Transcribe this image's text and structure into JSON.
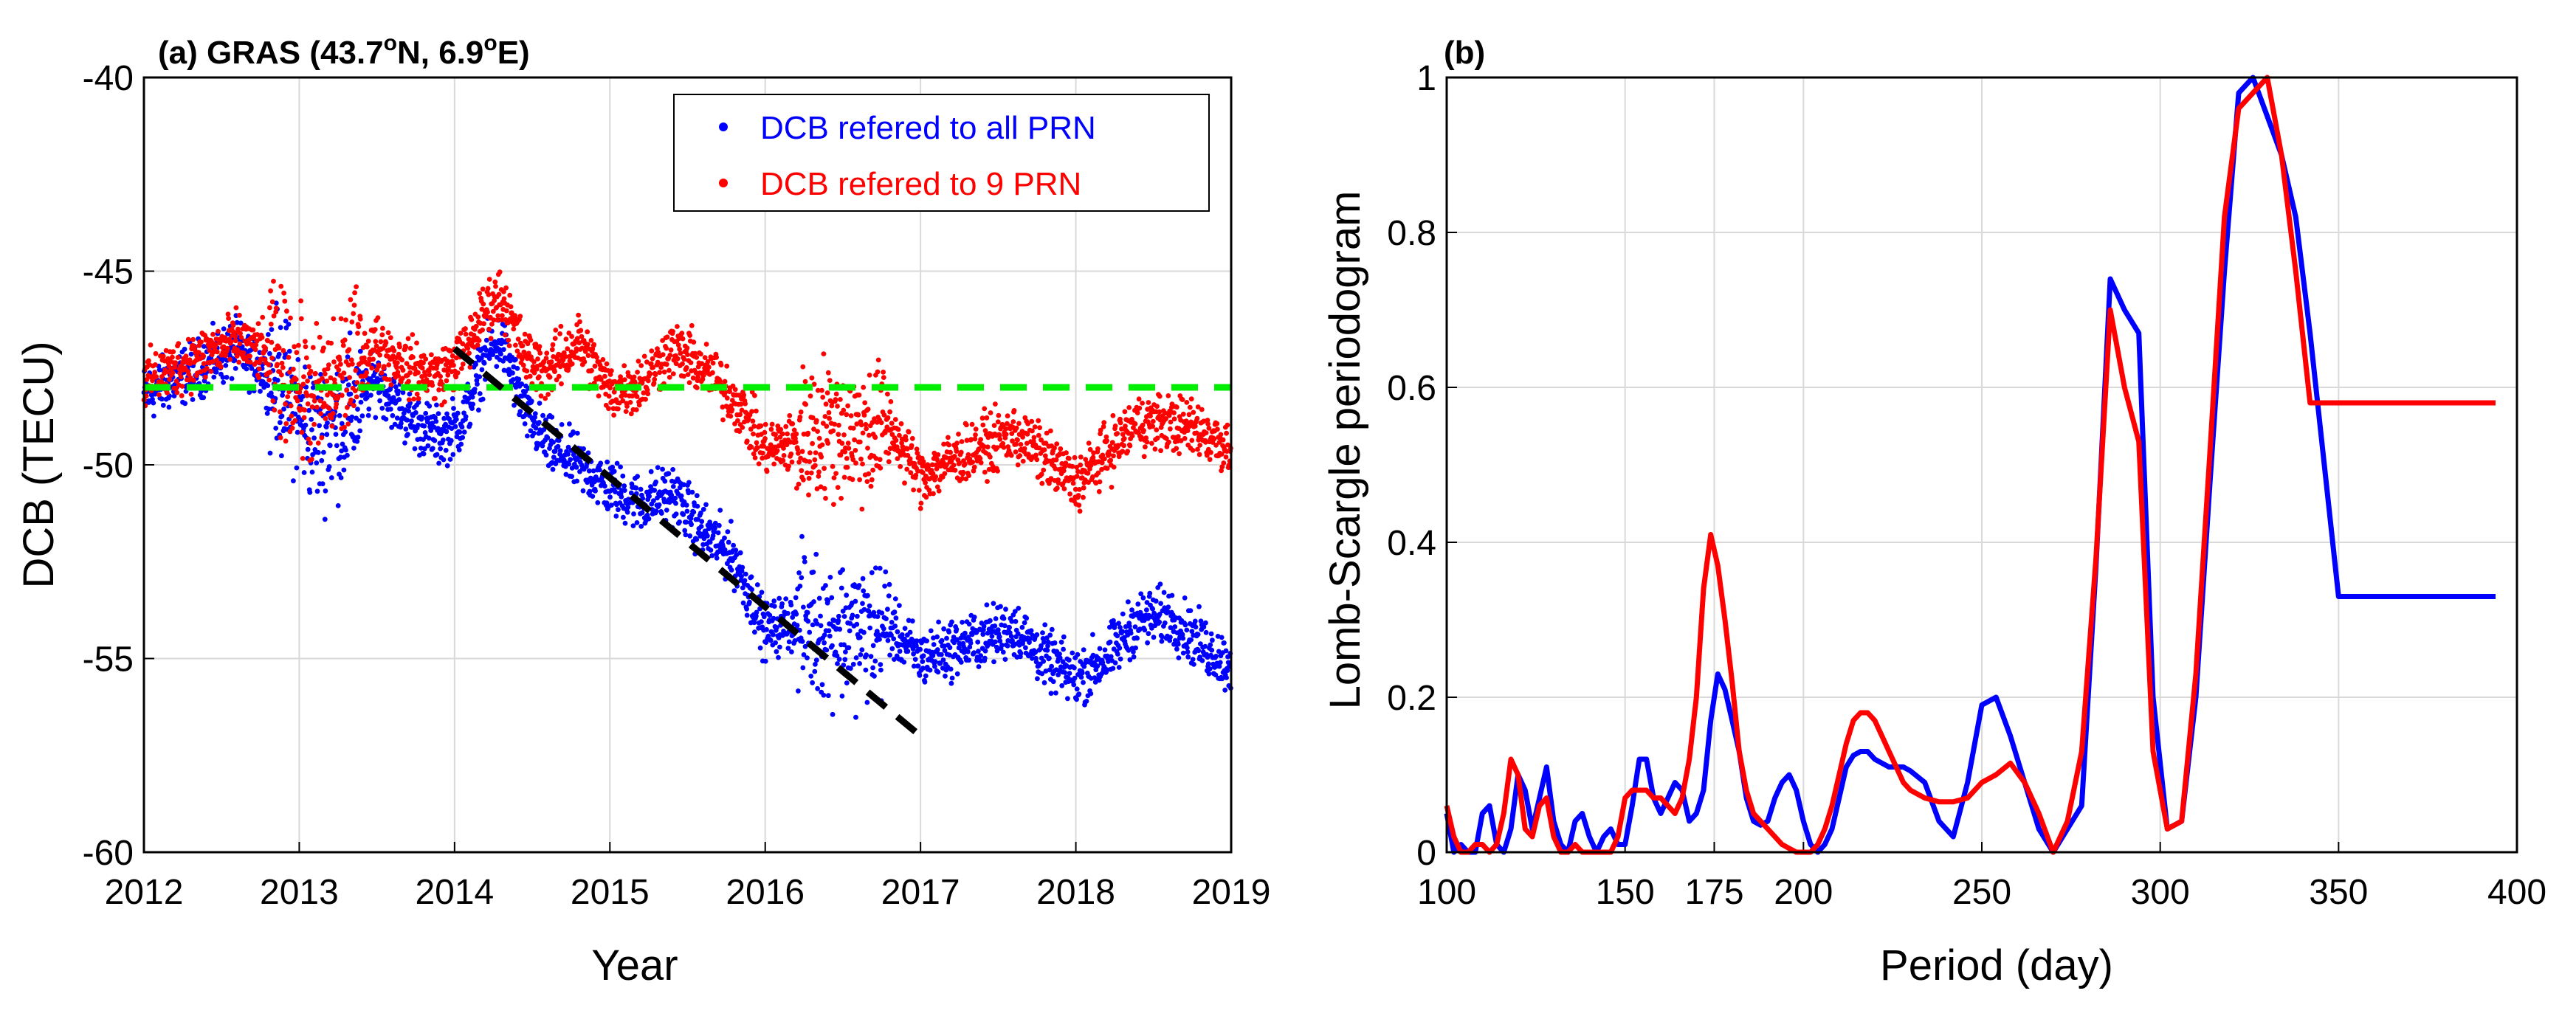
{
  "chart_data": [
    {
      "type": "scatter",
      "title": "(a) GRAS (43.7",
      "title_sup1": "o",
      "title_mid": "N, 6.9",
      "title_sup2": "o",
      "title_end": "E)",
      "xlabel": "Year",
      "ylabel": "DCB (TECU)",
      "xlim": [
        2012,
        2019
      ],
      "ylim": [
        -60,
        -40
      ],
      "xticks": [
        "2012",
        "2013",
        "2014",
        "2015",
        "2016",
        "2017",
        "2018",
        "2019"
      ],
      "yticks": [
        "-40",
        "-45",
        "-50",
        "-55",
        "-60"
      ],
      "grid": true,
      "legend_position": "top-right",
      "series": [
        {
          "name": "DCB refered to all PRN",
          "color": "#0000ff",
          "marker": "dot",
          "trend_points": [
            [
              2012.0,
              -48.2
            ],
            [
              2012.3,
              -47.6
            ],
            [
              2012.6,
              -47.0
            ],
            [
              2012.9,
              -48.0
            ],
            [
              2013.1,
              -49.3
            ],
            [
              2013.3,
              -48.8
            ],
            [
              2013.5,
              -47.8
            ],
            [
              2013.7,
              -48.8
            ],
            [
              2013.9,
              -49.3
            ],
            [
              2014.05,
              -48.9
            ],
            [
              2014.2,
              -47.2
            ],
            [
              2014.3,
              -46.8
            ],
            [
              2014.45,
              -48.6
            ],
            [
              2014.6,
              -49.5
            ],
            [
              2014.8,
              -50.0
            ],
            [
              2015.0,
              -50.6
            ],
            [
              2015.2,
              -51.0
            ],
            [
              2015.4,
              -50.7
            ],
            [
              2015.6,
              -51.7
            ],
            [
              2015.8,
              -52.4
            ],
            [
              2016.0,
              -54.3
            ],
            [
              2016.2,
              -54.0
            ],
            [
              2016.4,
              -54.2
            ],
            [
              2016.6,
              -54.3
            ],
            [
              2016.8,
              -54.2
            ],
            [
              2017.0,
              -55.0
            ],
            [
              2017.3,
              -54.6
            ],
            [
              2017.6,
              -54.2
            ],
            [
              2017.8,
              -55.0
            ],
            [
              2018.0,
              -55.5
            ],
            [
              2018.2,
              -55.0
            ],
            [
              2018.4,
              -54.0
            ],
            [
              2018.6,
              -53.9
            ],
            [
              2018.8,
              -54.6
            ],
            [
              2019.0,
              -55.2
            ]
          ]
        },
        {
          "name": "DCB refered to 9 PRN",
          "color": "#ff0000",
          "marker": "dot",
          "trend_points": [
            [
              2012.0,
              -47.9
            ],
            [
              2012.3,
              -47.3
            ],
            [
              2012.6,
              -46.8
            ],
            [
              2012.9,
              -47.4
            ],
            [
              2013.1,
              -48.4
            ],
            [
              2013.3,
              -47.6
            ],
            [
              2013.5,
              -46.9
            ],
            [
              2013.7,
              -47.5
            ],
            [
              2013.9,
              -47.7
            ],
            [
              2014.05,
              -47.2
            ],
            [
              2014.2,
              -46.0
            ],
            [
              2014.3,
              -45.6
            ],
            [
              2014.45,
              -47.2
            ],
            [
              2014.6,
              -47.6
            ],
            [
              2014.8,
              -46.8
            ],
            [
              2015.0,
              -48.1
            ],
            [
              2015.2,
              -47.9
            ],
            [
              2015.4,
              -47.0
            ],
            [
              2015.6,
              -47.5
            ],
            [
              2015.8,
              -48.3
            ],
            [
              2016.0,
              -49.6
            ],
            [
              2016.2,
              -49.4
            ],
            [
              2016.4,
              -49.0
            ],
            [
              2016.6,
              -49.2
            ],
            [
              2016.8,
              -49.0
            ],
            [
              2017.0,
              -50.3
            ],
            [
              2017.3,
              -49.7
            ],
            [
              2017.6,
              -49.2
            ],
            [
              2017.8,
              -49.8
            ],
            [
              2018.0,
              -50.5
            ],
            [
              2018.2,
              -49.7
            ],
            [
              2018.4,
              -48.9
            ],
            [
              2018.6,
              -48.9
            ],
            [
              2018.8,
              -49.1
            ],
            [
              2019.0,
              -49.6
            ]
          ]
        }
      ],
      "reference_lines": [
        {
          "name": "constant-level",
          "color": "#00ee00",
          "style": "dashed",
          "x": [
            2012,
            2019
          ],
          "y": [
            -48,
            -48
          ]
        },
        {
          "name": "linear-trend",
          "color": "#000000",
          "style": "dashed",
          "x": [
            2014.0,
            2017.0
          ],
          "y": [
            -47.0,
            -57.0
          ]
        }
      ]
    },
    {
      "type": "line",
      "title": "(b)",
      "xlabel": "Period (day)",
      "ylabel": "Lomb-Scargle periodogram",
      "xlim": [
        100,
        400
      ],
      "ylim": [
        0,
        1
      ],
      "xticks": [
        "100",
        "150",
        "175",
        "200",
        "250",
        "300",
        "350",
        "400"
      ],
      "xtick_values": [
        100,
        150,
        175,
        200,
        250,
        300,
        350,
        400
      ],
      "yticks": [
        "0",
        "0.2",
        "0.4",
        "0.6",
        "0.8",
        "1"
      ],
      "ytick_values": [
        0,
        0.2,
        0.4,
        0.6,
        0.8,
        1
      ],
      "grid": true,
      "series": [
        {
          "name": "DCB refered to all PRN",
          "color": "#0000ff",
          "x": [
            100,
            102,
            104,
            106,
            108,
            110,
            112,
            114,
            116,
            118,
            120,
            122,
            124,
            126,
            128,
            130,
            132,
            134,
            136,
            138,
            140,
            142,
            144,
            146,
            148,
            150,
            152,
            154,
            156,
            158,
            160,
            162,
            164,
            166,
            168,
            170,
            172,
            174,
            176,
            178,
            180,
            182,
            184,
            186,
            188,
            190,
            192,
            194,
            196,
            198,
            200,
            202,
            204,
            206,
            208,
            210,
            212,
            214,
            216,
            218,
            220,
            222,
            224,
            226,
            228,
            230,
            234,
            238,
            242,
            246,
            250,
            254,
            258,
            262,
            266,
            270,
            274,
            278,
            282,
            286,
            290,
            294,
            298,
            302,
            306,
            310,
            314,
            318,
            322,
            326,
            330,
            334,
            338,
            342,
            346,
            350,
            354,
            358,
            362,
            366,
            370,
            374,
            378,
            382,
            386,
            390,
            394
          ],
          "y": [
            0.05,
            0.0,
            0.01,
            0.0,
            0.0,
            0.05,
            0.06,
            0.01,
            0.0,
            0.03,
            0.1,
            0.08,
            0.03,
            0.07,
            0.11,
            0.04,
            0.01,
            0.0,
            0.04,
            0.05,
            0.02,
            0.0,
            0.02,
            0.03,
            0.01,
            0.01,
            0.06,
            0.12,
            0.12,
            0.07,
            0.05,
            0.07,
            0.09,
            0.08,
            0.04,
            0.05,
            0.08,
            0.17,
            0.23,
            0.21,
            0.17,
            0.13,
            0.07,
            0.04,
            0.035,
            0.04,
            0.07,
            0.09,
            0.1,
            0.08,
            0.04,
            0.01,
            0.0,
            0.01,
            0.03,
            0.07,
            0.11,
            0.125,
            0.13,
            0.13,
            0.12,
            0.115,
            0.11,
            0.11,
            0.11,
            0.105,
            0.09,
            0.04,
            0.02,
            0.09,
            0.19,
            0.2,
            0.15,
            0.09,
            0.03,
            0.0,
            0.03,
            0.06,
            0.37,
            0.74,
            0.7,
            0.67,
            0.2,
            0.03,
            0.04,
            0.2,
            0.48,
            0.75,
            0.98,
            1.0,
            0.95,
            0.9,
            0.82,
            0.67,
            0.5,
            0.33,
            0.33,
            0.33,
            0.33,
            0.33,
            0.33,
            0.33,
            0.33,
            0.33,
            0.33,
            0.33,
            0.33
          ]
        },
        {
          "name": "DCB refered to 9 PRN",
          "color": "#ff0000",
          "x": [
            100,
            102,
            104,
            106,
            108,
            110,
            112,
            114,
            116,
            118,
            120,
            122,
            124,
            126,
            128,
            130,
            132,
            134,
            136,
            138,
            140,
            142,
            144,
            146,
            148,
            150,
            152,
            154,
            156,
            158,
            160,
            162,
            164,
            166,
            168,
            170,
            172,
            174,
            176,
            178,
            180,
            182,
            184,
            186,
            188,
            190,
            192,
            194,
            196,
            198,
            200,
            202,
            204,
            206,
            208,
            210,
            212,
            214,
            216,
            218,
            220,
            222,
            224,
            226,
            228,
            230,
            234,
            238,
            242,
            246,
            250,
            254,
            258,
            262,
            266,
            270,
            274,
            278,
            282,
            286,
            290,
            294,
            298,
            302,
            306,
            310,
            314,
            318,
            322,
            326,
            330,
            334,
            338,
            342,
            346,
            350,
            354,
            358,
            362,
            366,
            370,
            374,
            378,
            382,
            386,
            390,
            394
          ],
          "y": [
            0.06,
            0.02,
            0.0,
            0.0,
            0.01,
            0.01,
            0.0,
            0.01,
            0.05,
            0.12,
            0.1,
            0.03,
            0.02,
            0.06,
            0.07,
            0.02,
            0.0,
            0.0,
            0.01,
            0.0,
            0.0,
            0.0,
            0.0,
            0.0,
            0.02,
            0.07,
            0.08,
            0.08,
            0.08,
            0.07,
            0.07,
            0.06,
            0.05,
            0.07,
            0.12,
            0.2,
            0.34,
            0.41,
            0.37,
            0.3,
            0.22,
            0.13,
            0.08,
            0.05,
            0.04,
            0.03,
            0.02,
            0.01,
            0.005,
            0.0,
            0.0,
            0.0,
            0.01,
            0.03,
            0.06,
            0.1,
            0.14,
            0.17,
            0.18,
            0.18,
            0.17,
            0.15,
            0.13,
            0.11,
            0.09,
            0.08,
            0.07,
            0.065,
            0.065,
            0.07,
            0.09,
            0.1,
            0.115,
            0.09,
            0.05,
            0.0,
            0.04,
            0.13,
            0.38,
            0.7,
            0.6,
            0.53,
            0.13,
            0.03,
            0.04,
            0.23,
            0.52,
            0.82,
            0.96,
            0.98,
            1.0,
            0.9,
            0.75,
            0.58,
            0.58,
            0.58,
            0.58,
            0.58,
            0.58,
            0.58,
            0.58,
            0.58,
            0.58,
            0.58,
            0.58,
            0.58,
            0.58
          ]
        }
      ]
    }
  ]
}
